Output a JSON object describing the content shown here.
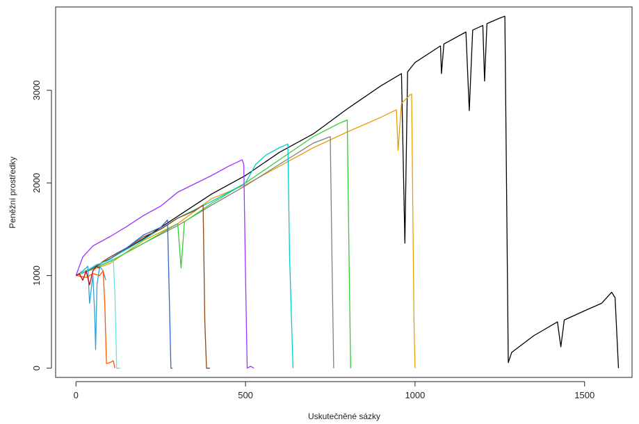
{
  "chart_data": {
    "type": "line",
    "title": "",
    "xlabel": "Uskutečněné sázky",
    "ylabel": "Peněžní prostředky",
    "xlim": [
      -60,
      1640
    ],
    "ylim": [
      -100,
      3900
    ],
    "x_ticks": [
      0,
      500,
      1000,
      1500
    ],
    "y_ticks": [
      0,
      1000,
      2000,
      3000
    ],
    "grid": false,
    "legend": "none",
    "series": [
      {
        "color": "#000000",
        "points": [
          [
            0,
            1000
          ],
          [
            100,
            1180
          ],
          [
            200,
            1400
          ],
          [
            300,
            1640
          ],
          [
            400,
            1880
          ],
          [
            500,
            2080
          ],
          [
            600,
            2330
          ],
          [
            700,
            2530
          ],
          [
            800,
            2800
          ],
          [
            900,
            3050
          ],
          [
            960,
            3180
          ],
          [
            970,
            1350
          ],
          [
            978,
            3200
          ],
          [
            1000,
            3300
          ],
          [
            1075,
            3480
          ],
          [
            1078,
            3180
          ],
          [
            1085,
            3500
          ],
          [
            1150,
            3630
          ],
          [
            1160,
            2780
          ],
          [
            1170,
            3650
          ],
          [
            1200,
            3700
          ],
          [
            1205,
            3100
          ],
          [
            1212,
            3720
          ],
          [
            1250,
            3780
          ],
          [
            1265,
            3800
          ],
          [
            1275,
            60
          ],
          [
            1285,
            170
          ],
          [
            1350,
            350
          ],
          [
            1420,
            500
          ],
          [
            1430,
            230
          ],
          [
            1440,
            520
          ],
          [
            1500,
            620
          ],
          [
            1550,
            700
          ],
          [
            1570,
            780
          ],
          [
            1580,
            820
          ],
          [
            1590,
            760
          ],
          [
            1600,
            0
          ]
        ]
      },
      {
        "color": "#E69F00",
        "points": [
          [
            0,
            1000
          ],
          [
            100,
            1130
          ],
          [
            200,
            1380
          ],
          [
            300,
            1560
          ],
          [
            400,
            1830
          ],
          [
            500,
            1980
          ],
          [
            600,
            2180
          ],
          [
            700,
            2380
          ],
          [
            800,
            2550
          ],
          [
            900,
            2710
          ],
          [
            945,
            2790
          ],
          [
            950,
            2350
          ],
          [
            960,
            2860
          ],
          [
            985,
            2950
          ],
          [
            990,
            2960
          ],
          [
            997,
            500
          ],
          [
            1000,
            0
          ]
        ]
      },
      {
        "color": "#7F7F7F",
        "points": [
          [
            0,
            1000
          ],
          [
            100,
            1150
          ],
          [
            200,
            1350
          ],
          [
            300,
            1540
          ],
          [
            400,
            1760
          ],
          [
            500,
            1970
          ],
          [
            600,
            2200
          ],
          [
            700,
            2430
          ],
          [
            750,
            2500
          ],
          [
            755,
            1200
          ],
          [
            760,
            0
          ]
        ]
      },
      {
        "color": "#33CC33",
        "points": [
          [
            0,
            1000
          ],
          [
            100,
            1150
          ],
          [
            200,
            1350
          ],
          [
            300,
            1560
          ],
          [
            310,
            1080
          ],
          [
            320,
            1580
          ],
          [
            400,
            1780
          ],
          [
            500,
            2000
          ],
          [
            600,
            2250
          ],
          [
            700,
            2500
          ],
          [
            780,
            2650
          ],
          [
            800,
            2680
          ],
          [
            805,
            1300
          ],
          [
            810,
            0
          ]
        ]
      },
      {
        "color": "#00CCCC",
        "points": [
          [
            0,
            1000
          ],
          [
            100,
            1180
          ],
          [
            200,
            1390
          ],
          [
            300,
            1620
          ],
          [
            400,
            1800
          ],
          [
            500,
            2000
          ],
          [
            530,
            2200
          ],
          [
            560,
            2300
          ],
          [
            600,
            2380
          ],
          [
            625,
            2420
          ],
          [
            630,
            1200
          ],
          [
            640,
            0
          ]
        ]
      },
      {
        "color": "#9933FF",
        "points": [
          [
            0,
            1000
          ],
          [
            20,
            1200
          ],
          [
            50,
            1320
          ],
          [
            100,
            1420
          ],
          [
            150,
            1530
          ],
          [
            200,
            1650
          ],
          [
            250,
            1750
          ],
          [
            300,
            1900
          ],
          [
            350,
            1990
          ],
          [
            400,
            2080
          ],
          [
            450,
            2180
          ],
          [
            490,
            2250
          ],
          [
            495,
            2200
          ],
          [
            500,
            1000
          ],
          [
            505,
            0
          ],
          [
            515,
            20
          ],
          [
            525,
            0
          ]
        ]
      },
      {
        "color": "#8B4513",
        "points": [
          [
            0,
            1000
          ],
          [
            50,
            1080
          ],
          [
            100,
            1200
          ],
          [
            150,
            1300
          ],
          [
            200,
            1420
          ],
          [
            250,
            1500
          ],
          [
            300,
            1620
          ],
          [
            350,
            1700
          ],
          [
            375,
            1760
          ],
          [
            380,
            500
          ],
          [
            385,
            0
          ],
          [
            395,
            0
          ]
        ]
      },
      {
        "color": "#3366CC",
        "points": [
          [
            0,
            1000
          ],
          [
            50,
            1080
          ],
          [
            100,
            1180
          ],
          [
            150,
            1300
          ],
          [
            200,
            1440
          ],
          [
            250,
            1520
          ],
          [
            270,
            1600
          ],
          [
            275,
            800
          ],
          [
            280,
            0
          ],
          [
            285,
            0
          ]
        ]
      },
      {
        "color": "#66E0E0",
        "points": [
          [
            0,
            1000
          ],
          [
            30,
            1050
          ],
          [
            60,
            1120
          ],
          [
            90,
            1150
          ],
          [
            110,
            1180
          ],
          [
            115,
            800
          ],
          [
            120,
            0
          ],
          [
            130,
            0
          ]
        ]
      },
      {
        "color": "#33A0D0",
        "points": [
          [
            0,
            1000
          ],
          [
            20,
            1050
          ],
          [
            35,
            1100
          ],
          [
            40,
            700
          ],
          [
            50,
            1000
          ],
          [
            55,
            600
          ],
          [
            58,
            200
          ],
          [
            62,
            900
          ],
          [
            70,
            1100
          ],
          [
            80,
            1050
          ],
          [
            88,
            950
          ]
        ]
      },
      {
        "color": "#FF5500",
        "points": [
          [
            0,
            1000
          ],
          [
            30,
            980
          ],
          [
            50,
            1020
          ],
          [
            70,
            1000
          ],
          [
            80,
            1050
          ],
          [
            85,
            700
          ],
          [
            90,
            50
          ],
          [
            100,
            60
          ],
          [
            110,
            80
          ],
          [
            115,
            0
          ]
        ]
      },
      {
        "color": "#CC0000",
        "points": [
          [
            0,
            1000
          ],
          [
            10,
            1020
          ],
          [
            20,
            950
          ],
          [
            30,
            1050
          ],
          [
            40,
            900
          ],
          [
            50,
            1050
          ],
          [
            60,
            1100
          ],
          [
            70,
            1080
          ]
        ]
      }
    ]
  }
}
